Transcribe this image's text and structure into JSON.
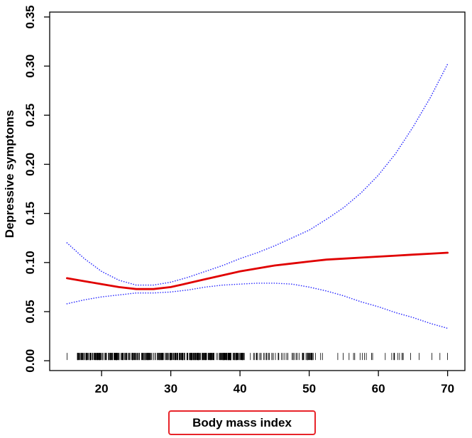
{
  "chart_data": {
    "type": "line",
    "xlabel": "Body mass index",
    "ylabel": "Depressive symptoms",
    "xlim": [
      12.5,
      72.5
    ],
    "ylim": [
      -0.01,
      0.355
    ],
    "x_ticks": [
      "20",
      "30",
      "40",
      "50",
      "60",
      "70"
    ],
    "y_ticks": [
      "0.00",
      "0.05",
      "0.10",
      "0.15",
      "0.20",
      "0.25",
      "0.30",
      "0.35"
    ],
    "grid": false,
    "legend": "none",
    "rug": "dense black tick marks along the x-axis for BMI observations, roughly 15 to 70, densest between 17 and 40",
    "series": [
      {
        "role": "estimate",
        "color": "#e00000",
        "style": "solid",
        "x": [
          15,
          17.5,
          20,
          22.5,
          25,
          27.5,
          30,
          32.5,
          35,
          37.5,
          40,
          42.5,
          45,
          47.5,
          50,
          52.5,
          55,
          57.5,
          60,
          62.5,
          65,
          67.5,
          70
        ],
        "y": [
          0.084,
          0.081,
          0.078,
          0.075,
          0.073,
          0.073,
          0.075,
          0.079,
          0.083,
          0.087,
          0.091,
          0.094,
          0.097,
          0.099,
          0.101,
          0.103,
          0.104,
          0.105,
          0.106,
          0.107,
          0.108,
          0.109,
          0.11
        ]
      },
      {
        "role": "upper confidence bound",
        "color": "#2b2bff",
        "style": "dotted",
        "x": [
          15,
          17.5,
          20,
          22.5,
          25,
          27.5,
          30,
          32.5,
          35,
          37.5,
          40,
          42.5,
          45,
          47.5,
          50,
          52.5,
          55,
          57.5,
          60,
          62.5,
          65,
          67.5,
          70
        ],
        "y": [
          0.12,
          0.104,
          0.091,
          0.082,
          0.077,
          0.077,
          0.08,
          0.085,
          0.091,
          0.097,
          0.104,
          0.11,
          0.117,
          0.125,
          0.133,
          0.144,
          0.156,
          0.171,
          0.189,
          0.211,
          0.238,
          0.268,
          0.302
        ]
      },
      {
        "role": "lower confidence bound",
        "color": "#2b2bff",
        "style": "dotted",
        "x": [
          15,
          17.5,
          20,
          22.5,
          25,
          27.5,
          30,
          32.5,
          35,
          37.5,
          40,
          42.5,
          45,
          47.5,
          50,
          52.5,
          55,
          57.5,
          60,
          62.5,
          65,
          67.5,
          70
        ],
        "y": [
          0.058,
          0.062,
          0.065,
          0.067,
          0.069,
          0.069,
          0.07,
          0.072,
          0.075,
          0.077,
          0.078,
          0.079,
          0.079,
          0.078,
          0.075,
          0.071,
          0.066,
          0.06,
          0.055,
          0.049,
          0.044,
          0.038,
          0.033
        ]
      }
    ]
  }
}
